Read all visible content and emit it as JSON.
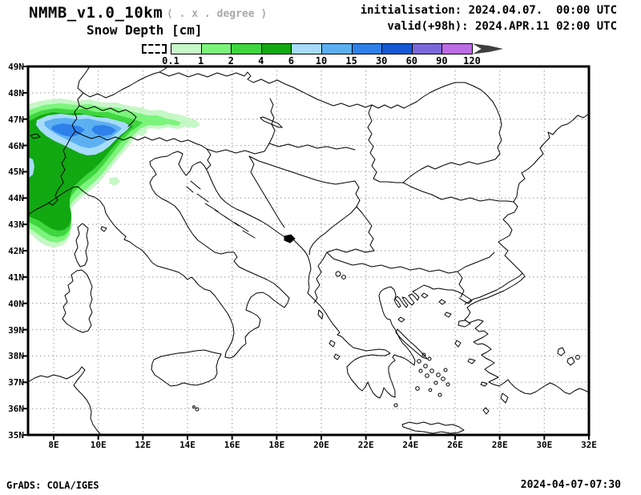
{
  "header": {
    "model_title": "NMMB_v1.0_10km",
    "grid_note": "( . x . degree )",
    "variable_title": "Snow Depth [cm]",
    "initialisation_line": "initialisation: 2024.04.07.  00:00 UTC",
    "valid_line": "valid(+98h): 2024.APR.11 02:00 UTC"
  },
  "colorbar": {
    "tick_labels": [
      "0.1",
      "1",
      "2",
      "4",
      "6",
      "10",
      "15",
      "30",
      "60",
      "90",
      "120"
    ],
    "segment_colors": [
      "#c6f7c6",
      "#7cf47c",
      "#3fd63f",
      "#12a812",
      "#a6dcfa",
      "#5cb0f2",
      "#2e80ea",
      "#1458d2",
      "#7a68da",
      "#bc6ce4"
    ],
    "below_min_box_style": "dashed-white-box",
    "overflow_arrow_color": "#3f3f3f"
  },
  "map": {
    "lat_labels": [
      "49N",
      "48N",
      "47N",
      "46N",
      "45N",
      "44N",
      "43N",
      "42N",
      "41N",
      "40N",
      "39N",
      "38N",
      "37N",
      "36N",
      "35N"
    ],
    "lon_labels": [
      "8E",
      "10E",
      "12E",
      "14E",
      "16E",
      "18E",
      "20E",
      "22E",
      "24E",
      "26E",
      "28E",
      "30E",
      "32E"
    ],
    "gridline_color": "#a9a9a9",
    "coastline_color": "#000000"
  },
  "footer": {
    "credit": "GrADS: COLA/IGES",
    "timestamp": "2024-04-07-07:30"
  }
}
